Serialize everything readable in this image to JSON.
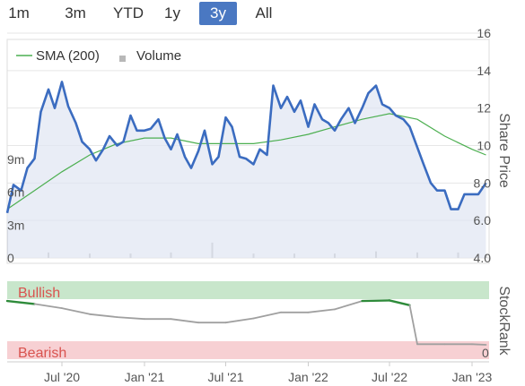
{
  "range_buttons": [
    {
      "label": "1m",
      "active": false
    },
    {
      "label": "3m",
      "active": false
    },
    {
      "label": "YTD",
      "active": false
    },
    {
      "label": "1y",
      "active": false
    },
    {
      "label": "3y",
      "active": true
    },
    {
      "label": "All",
      "active": false
    }
  ],
  "legend": {
    "sma_label": "SMA (200)",
    "volume_label": "Volume"
  },
  "colors": {
    "price": "#3b6cc0",
    "sma": "#4caf50",
    "volume": "#b8b8b8",
    "stockrank_grey": "#a0a0a0",
    "stockrank_green": "#2e8b3a",
    "bullish_band": "#c8e6cb",
    "bearish_band": "#f7d0d3",
    "active_button": "#4a78c2"
  },
  "labels": {
    "share_price_axis": "Share Price",
    "stockrank_axis": "StockRank",
    "bullish": "Bullish",
    "bearish": "Bearish",
    "stockrank_zero": "0"
  },
  "chart_data": [
    {
      "type": "line",
      "panel": "price",
      "ylabel": "Share Price",
      "ylim": [
        4.0,
        16
      ],
      "right_ticks": [
        "16",
        "14",
        "12",
        "10",
        "8.0",
        "6.0",
        "4.0"
      ],
      "volume_ticks": [
        "9m",
        "6m",
        "3m",
        "0"
      ],
      "volume_ylim": [
        0,
        9
      ],
      "x_ticks": [
        "Jul '20",
        "Jan '21",
        "Jul '21",
        "Jan '22",
        "Jul '22",
        "Jan '23"
      ],
      "x_range": [
        "2020-03",
        "2023-02"
      ],
      "grid": true,
      "legend_position": "top-left",
      "series": [
        {
          "name": "Share Price",
          "x": [
            "2020-03-01",
            "2020-03-15",
            "2020-04-01",
            "2020-04-15",
            "2020-05-01",
            "2020-05-15",
            "2020-06-01",
            "2020-06-15",
            "2020-07-01",
            "2020-07-15",
            "2020-08-01",
            "2020-08-15",
            "2020-09-01",
            "2020-09-15",
            "2020-10-01",
            "2020-10-15",
            "2020-11-01",
            "2020-11-15",
            "2020-12-01",
            "2020-12-15",
            "2021-01-01",
            "2021-01-15",
            "2021-02-01",
            "2021-02-15",
            "2021-03-01",
            "2021-03-15",
            "2021-04-01",
            "2021-04-15",
            "2021-05-01",
            "2021-05-15",
            "2021-06-01",
            "2021-06-15",
            "2021-07-01",
            "2021-07-15",
            "2021-08-01",
            "2021-08-15",
            "2021-09-01",
            "2021-09-15",
            "2021-10-01",
            "2021-10-15",
            "2021-11-01",
            "2021-11-15",
            "2021-12-01",
            "2021-12-15",
            "2022-01-01",
            "2022-01-15",
            "2022-02-01",
            "2022-02-15",
            "2022-03-01",
            "2022-03-15",
            "2022-04-01",
            "2022-04-15",
            "2022-05-01",
            "2022-05-15",
            "2022-06-01",
            "2022-06-15",
            "2022-07-01",
            "2022-07-15",
            "2022-08-01",
            "2022-08-15",
            "2022-09-01",
            "2022-09-15",
            "2022-10-01",
            "2022-10-15",
            "2022-11-01",
            "2022-11-15",
            "2022-12-01",
            "2022-12-15",
            "2023-01-01",
            "2023-01-15",
            "2023-02-01"
          ],
          "values": [
            6.4,
            7.9,
            7.6,
            8.8,
            9.3,
            11.8,
            13.0,
            12.0,
            13.4,
            12.1,
            11.2,
            10.2,
            9.8,
            9.2,
            9.8,
            10.5,
            10.0,
            10.2,
            11.6,
            10.8,
            10.8,
            10.9,
            11.4,
            10.4,
            9.8,
            10.6,
            9.4,
            8.8,
            9.7,
            10.8,
            9.0,
            9.4,
            11.5,
            11.0,
            9.4,
            9.3,
            9.0,
            9.8,
            9.5,
            13.2,
            12.0,
            12.6,
            11.8,
            12.4,
            11.0,
            12.2,
            11.4,
            11.2,
            10.8,
            11.4,
            12.0,
            11.2,
            12.0,
            12.8,
            13.2,
            12.2,
            12.0,
            11.6,
            11.4,
            11.0,
            9.9,
            9.0,
            8.0,
            7.6,
            7.6,
            6.6,
            6.6,
            7.4,
            7.4,
            7.4,
            8.0
          ]
        },
        {
          "name": "SMA (200)",
          "x": [
            "2020-03-01",
            "2020-05-01",
            "2020-07-01",
            "2020-09-01",
            "2020-11-01",
            "2021-01-01",
            "2021-03-01",
            "2021-05-01",
            "2021-07-01",
            "2021-09-01",
            "2021-11-01",
            "2022-01-01",
            "2022-03-01",
            "2022-05-01",
            "2022-07-01",
            "2022-09-01",
            "2022-11-01",
            "2023-01-01",
            "2023-02-01"
          ],
          "values": [
            6.6,
            7.6,
            8.6,
            9.5,
            10.1,
            10.4,
            10.4,
            10.1,
            10.1,
            10.1,
            10.3,
            10.6,
            11.0,
            11.4,
            11.7,
            11.4,
            10.5,
            9.8,
            9.5
          ]
        },
        {
          "name": "Volume",
          "x": [
            "2020-03",
            "2020-06",
            "2020-09",
            "2020-12",
            "2021-03",
            "2021-06",
            "2021-09",
            "2021-12",
            "2022-03",
            "2022-06",
            "2022-09",
            "2022-12",
            "2023-02"
          ],
          "values": [
            2.6,
            0.5,
            0.4,
            0.4,
            0.5,
            1.4,
            0.4,
            0.4,
            0.4,
            0.6,
            0.5,
            0.5,
            0.3
          ]
        }
      ]
    },
    {
      "type": "line",
      "panel": "stockrank",
      "ylabel": "StockRank",
      "ylim": [
        0,
        100
      ],
      "series": [
        {
          "name": "StockRank",
          "x": [
            "2020-03-01",
            "2020-05-01",
            "2020-07-01",
            "2020-09-01",
            "2020-11-01",
            "2021-01-01",
            "2021-03-01",
            "2021-05-01",
            "2021-07-01",
            "2021-09-01",
            "2021-11-01",
            "2022-01-01",
            "2022-03-01",
            "2022-05-01",
            "2022-07-01",
            "2022-08-15",
            "2022-09-01",
            "2022-11-01",
            "2023-01-01",
            "2023-02-01"
          ],
          "values": [
            82,
            77,
            70,
            60,
            55,
            52,
            52,
            46,
            46,
            53,
            63,
            63,
            68,
            82,
            83,
            75,
            10,
            10,
            10,
            9
          ]
        }
      ]
    }
  ]
}
